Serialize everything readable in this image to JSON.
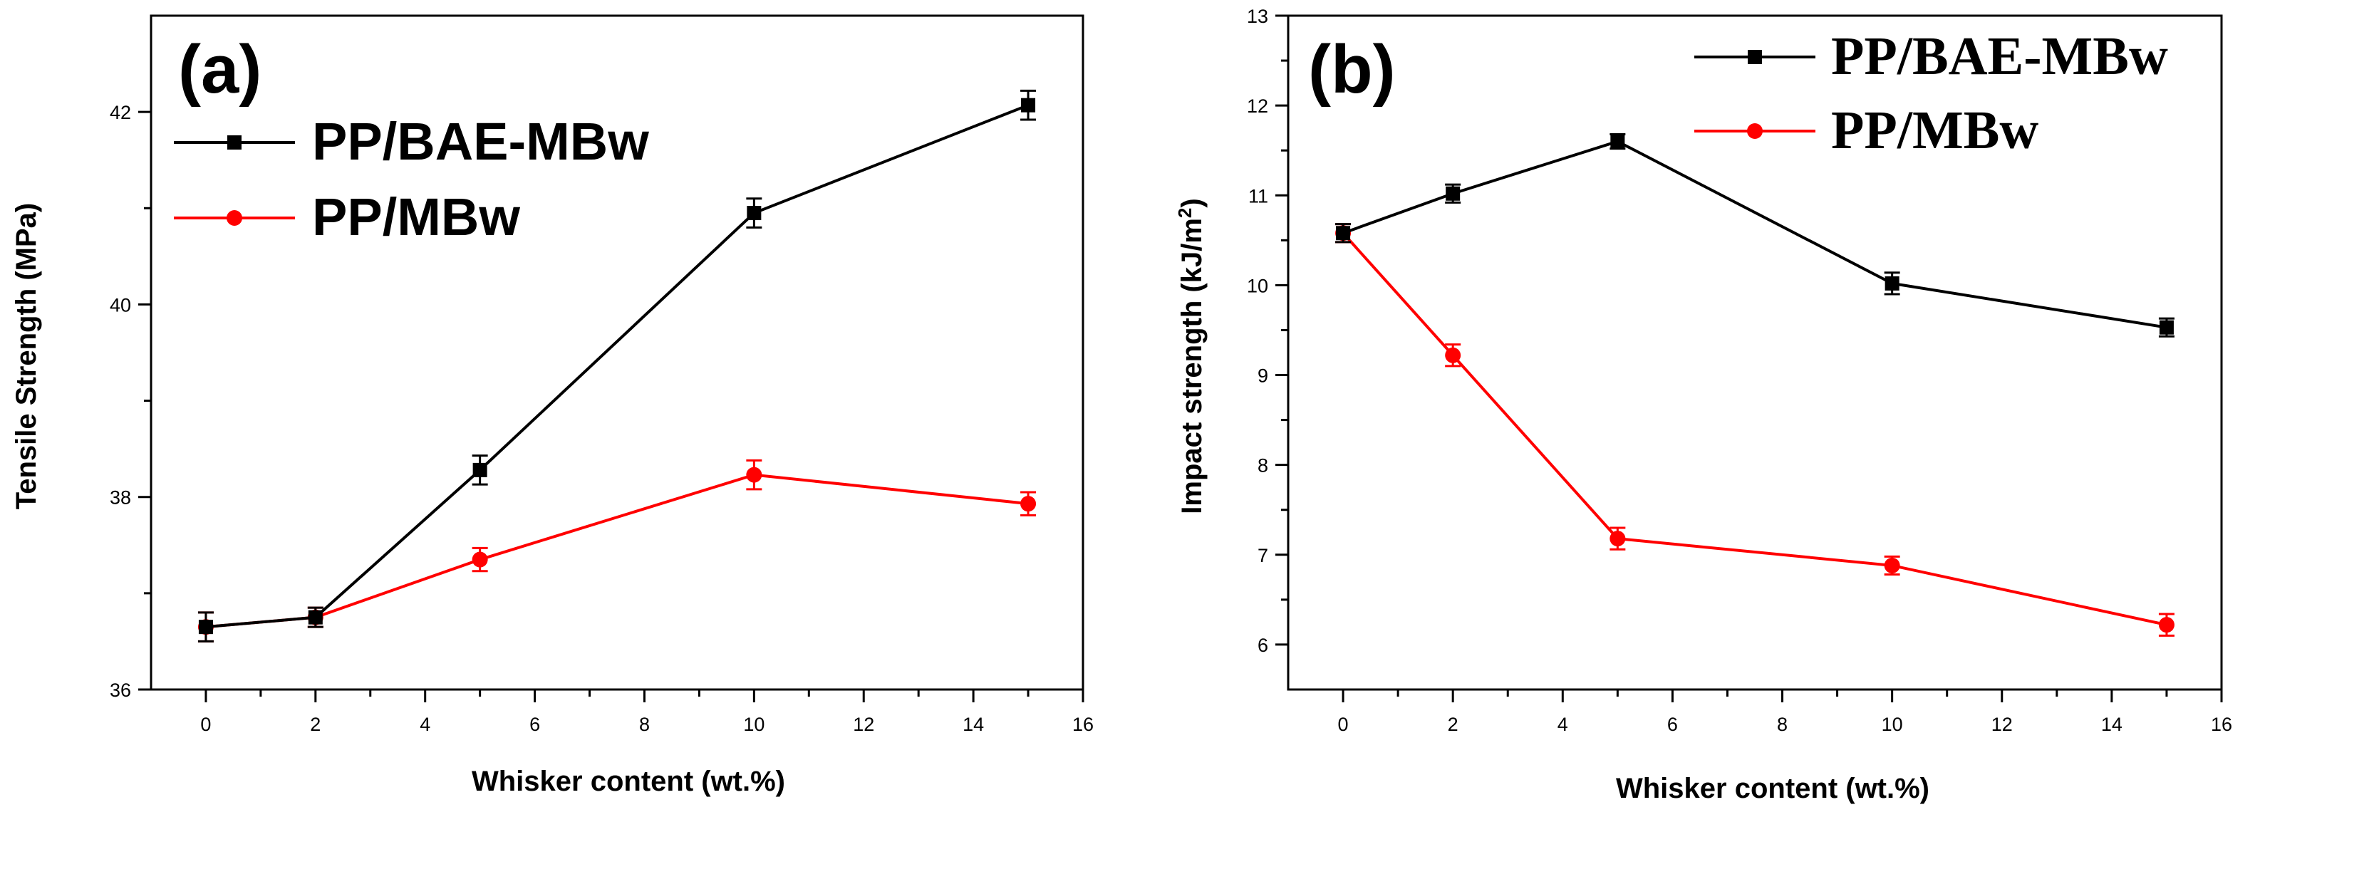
{
  "colors": {
    "series_black": "#000000",
    "series_red": "#ff0000"
  },
  "chart_data": [
    {
      "type": "line",
      "panel_label": "(a)",
      "xlabel": "Whisker content (wt.%)",
      "ylabel": "Tensile Strength (MPa)",
      "xlim": [
        -1,
        16
      ],
      "ylim": [
        36,
        43
      ],
      "xticks": [
        0,
        2,
        4,
        6,
        8,
        10,
        12,
        14,
        16
      ],
      "yticks": [
        36,
        38,
        40,
        42
      ],
      "legend_position": "top-left",
      "series": [
        {
          "name": "PP/BAE-MBw",
          "marker": "square",
          "color": "#000000",
          "x": [
            0,
            2,
            5,
            10,
            15
          ],
          "y": [
            36.65,
            36.75,
            38.28,
            40.95,
            42.07
          ],
          "err": [
            0.15,
            0.1,
            0.15,
            0.15,
            0.15
          ]
        },
        {
          "name": "PP/MBw",
          "marker": "circle",
          "color": "#ff0000",
          "x": [
            0,
            2,
            5,
            10,
            15
          ],
          "y": [
            36.65,
            36.75,
            37.35,
            38.23,
            37.93
          ],
          "err": [
            0.15,
            0.1,
            0.12,
            0.15,
            0.12
          ]
        }
      ]
    },
    {
      "type": "line",
      "panel_label": "(b)",
      "xlabel": "Whisker content (wt.%)",
      "ylabel_main": "Impact strength (kJ/m",
      "ylabel_sup": "2",
      "ylabel_close": ")",
      "xlim": [
        -1,
        16
      ],
      "ylim": [
        5.5,
        13
      ],
      "xticks": [
        0,
        2,
        4,
        6,
        8,
        10,
        12,
        14,
        16
      ],
      "yticks": [
        6,
        7,
        8,
        9,
        10,
        11,
        12,
        13
      ],
      "legend_position": "top-right",
      "series": [
        {
          "name": "PP/BAE-MBw",
          "marker": "square",
          "color": "#000000",
          "x": [
            0,
            2,
            5,
            10,
            15
          ],
          "y": [
            10.58,
            11.02,
            11.6,
            10.02,
            9.53
          ],
          "err": [
            0.1,
            0.1,
            0.08,
            0.12,
            0.1
          ]
        },
        {
          "name": "PP/MBw",
          "marker": "circle",
          "color": "#ff0000",
          "x": [
            0,
            2,
            5,
            10,
            15
          ],
          "y": [
            10.58,
            9.22,
            7.18,
            6.88,
            6.22
          ],
          "err": [
            0.1,
            0.12,
            0.12,
            0.1,
            0.12
          ]
        }
      ]
    }
  ]
}
